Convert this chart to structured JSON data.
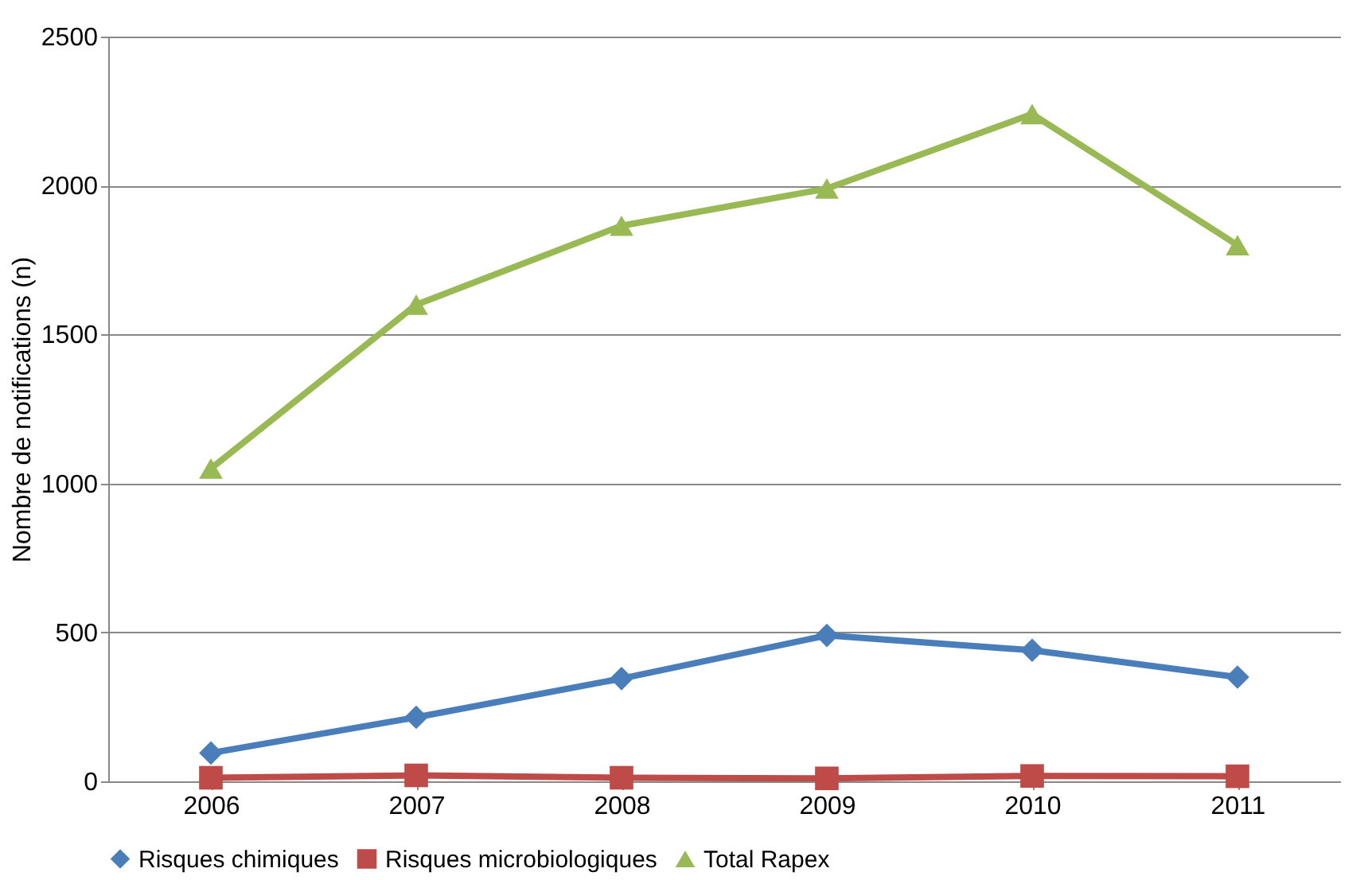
{
  "chart_data": {
    "type": "line",
    "ylabel": "Nombre de notifications (n)",
    "categories": [
      "2006",
      "2007",
      "2008",
      "2009",
      "2010",
      "2011"
    ],
    "series": [
      {
        "name": "Risques chimiques",
        "color": "#4a7ebb",
        "marker": "diamond",
        "values": [
          95,
          215,
          345,
          490,
          440,
          350
        ]
      },
      {
        "name": "Risques microbiologiques",
        "color": "#be4b48",
        "marker": "square",
        "values": [
          12,
          20,
          12,
          10,
          18,
          17
        ]
      },
      {
        "name": "Total Rapex",
        "color": "#98b954",
        "marker": "triangle",
        "values": [
          1050,
          1600,
          1865,
          1990,
          2240,
          1800
        ]
      }
    ],
    "ylim": [
      0,
      2500
    ],
    "yticks": [
      0,
      500,
      1000,
      1500,
      2000,
      2500
    ],
    "grid": "y",
    "legend": "bottom",
    "line_style": "solid"
  }
}
